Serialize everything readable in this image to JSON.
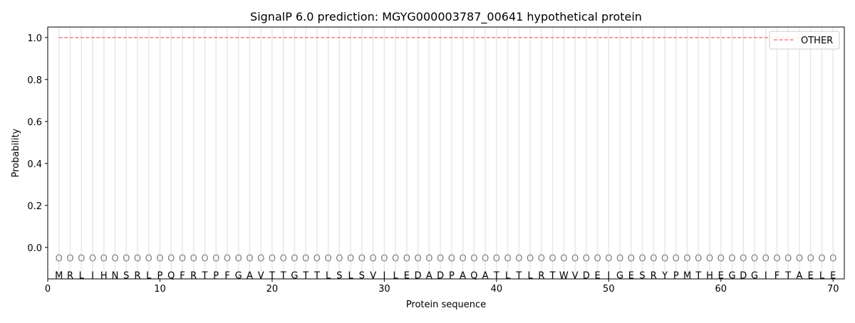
{
  "chart_data": {
    "type": "line",
    "title": "SignalP 6.0 prediction: MGYG000003787_00641 hypothetical protein",
    "xlabel": "Protein sequence",
    "ylabel": "Probability",
    "xlim": [
      0,
      71
    ],
    "ylim": [
      -0.15,
      1.05
    ],
    "xticks": [
      0,
      10,
      20,
      30,
      40,
      50,
      60,
      70
    ],
    "yticks": [
      0.0,
      0.2,
      0.4,
      0.6,
      0.8,
      1.0
    ],
    "ytick_labels": [
      "0.0",
      "0.2",
      "0.4",
      "0.6",
      "0.8",
      "1.0"
    ],
    "grid": "vertical lines at each residue",
    "legend_position": "top-right",
    "sequence": "MRLIHNSRLPQFRTPFGAVTTGTTLSLSVILEDADPAQATLTLRTWVDEIGESRYPMTHEGDGIFTAEL E",
    "predicted_labels": "OOOOOOOOOOOOOOOOOOOOOOOOOOOOOOOOOOOOOOOOOOOOOOOOOOOOOOOOOOOOOOOOOOOOOO",
    "series": [
      {
        "name": "OTHER",
        "color": "#f08080",
        "style": "dashed",
        "x_range": [
          1,
          70
        ],
        "value": 1.0
      }
    ]
  }
}
